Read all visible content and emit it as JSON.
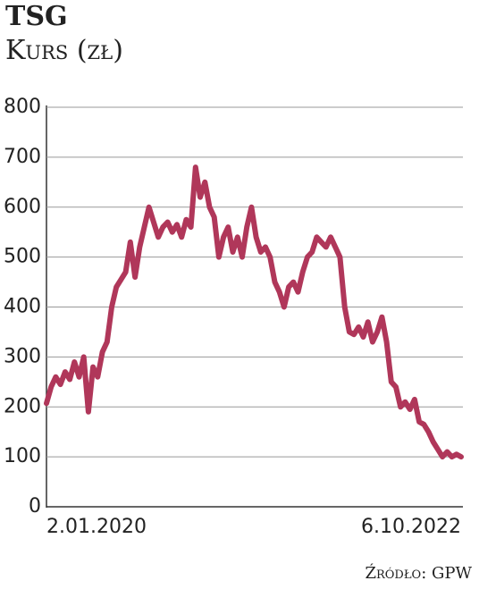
{
  "chart_data": {
    "type": "line",
    "title": "TSG",
    "subtitle": "Kurs (zł)",
    "source": "Źródło: GPW",
    "categories": [
      "2.01.2020",
      null,
      null,
      null,
      null,
      null,
      null,
      null,
      null,
      null,
      null,
      null,
      null,
      null,
      null,
      null,
      null,
      null,
      null,
      null,
      null,
      null,
      null,
      null,
      null,
      null,
      null,
      null,
      null,
      null,
      null,
      null,
      null,
      null,
      null,
      null,
      null,
      null,
      null,
      null,
      null,
      null,
      null,
      null,
      null,
      null,
      null,
      null,
      null,
      null,
      null,
      null,
      null,
      null,
      null,
      null,
      null,
      null,
      null,
      null,
      null,
      null,
      null,
      null,
      null,
      null,
      null,
      null,
      null,
      null,
      null,
      null,
      null,
      null,
      null,
      null,
      null,
      null,
      null,
      null,
      null,
      null,
      null,
      null,
      null,
      null,
      null,
      null,
      null,
      "6.10.2022"
    ],
    "values": [
      207,
      240,
      260,
      245,
      270,
      255,
      290,
      260,
      300,
      190,
      280,
      260,
      310,
      330,
      400,
      440,
      455,
      470,
      530,
      460,
      520,
      560,
      600,
      570,
      540,
      560,
      570,
      550,
      565,
      540,
      575,
      560,
      680,
      620,
      650,
      600,
      580,
      500,
      540,
      560,
      510,
      540,
      500,
      560,
      600,
      540,
      510,
      520,
      500,
      450,
      430,
      400,
      440,
      450,
      430,
      470,
      500,
      510,
      540,
      530,
      520,
      540,
      520,
      500,
      400,
      350,
      345,
      360,
      340,
      370,
      330,
      350,
      380,
      330,
      250,
      240,
      200,
      210,
      195,
      215,
      170,
      165,
      150,
      130,
      115,
      100,
      110,
      100,
      105,
      100
    ],
    "color": "#b0375a",
    "ylim": [
      0,
      800
    ],
    "yticks": [
      0,
      100,
      200,
      300,
      400,
      500,
      600,
      700,
      800
    ],
    "grid": true
  }
}
